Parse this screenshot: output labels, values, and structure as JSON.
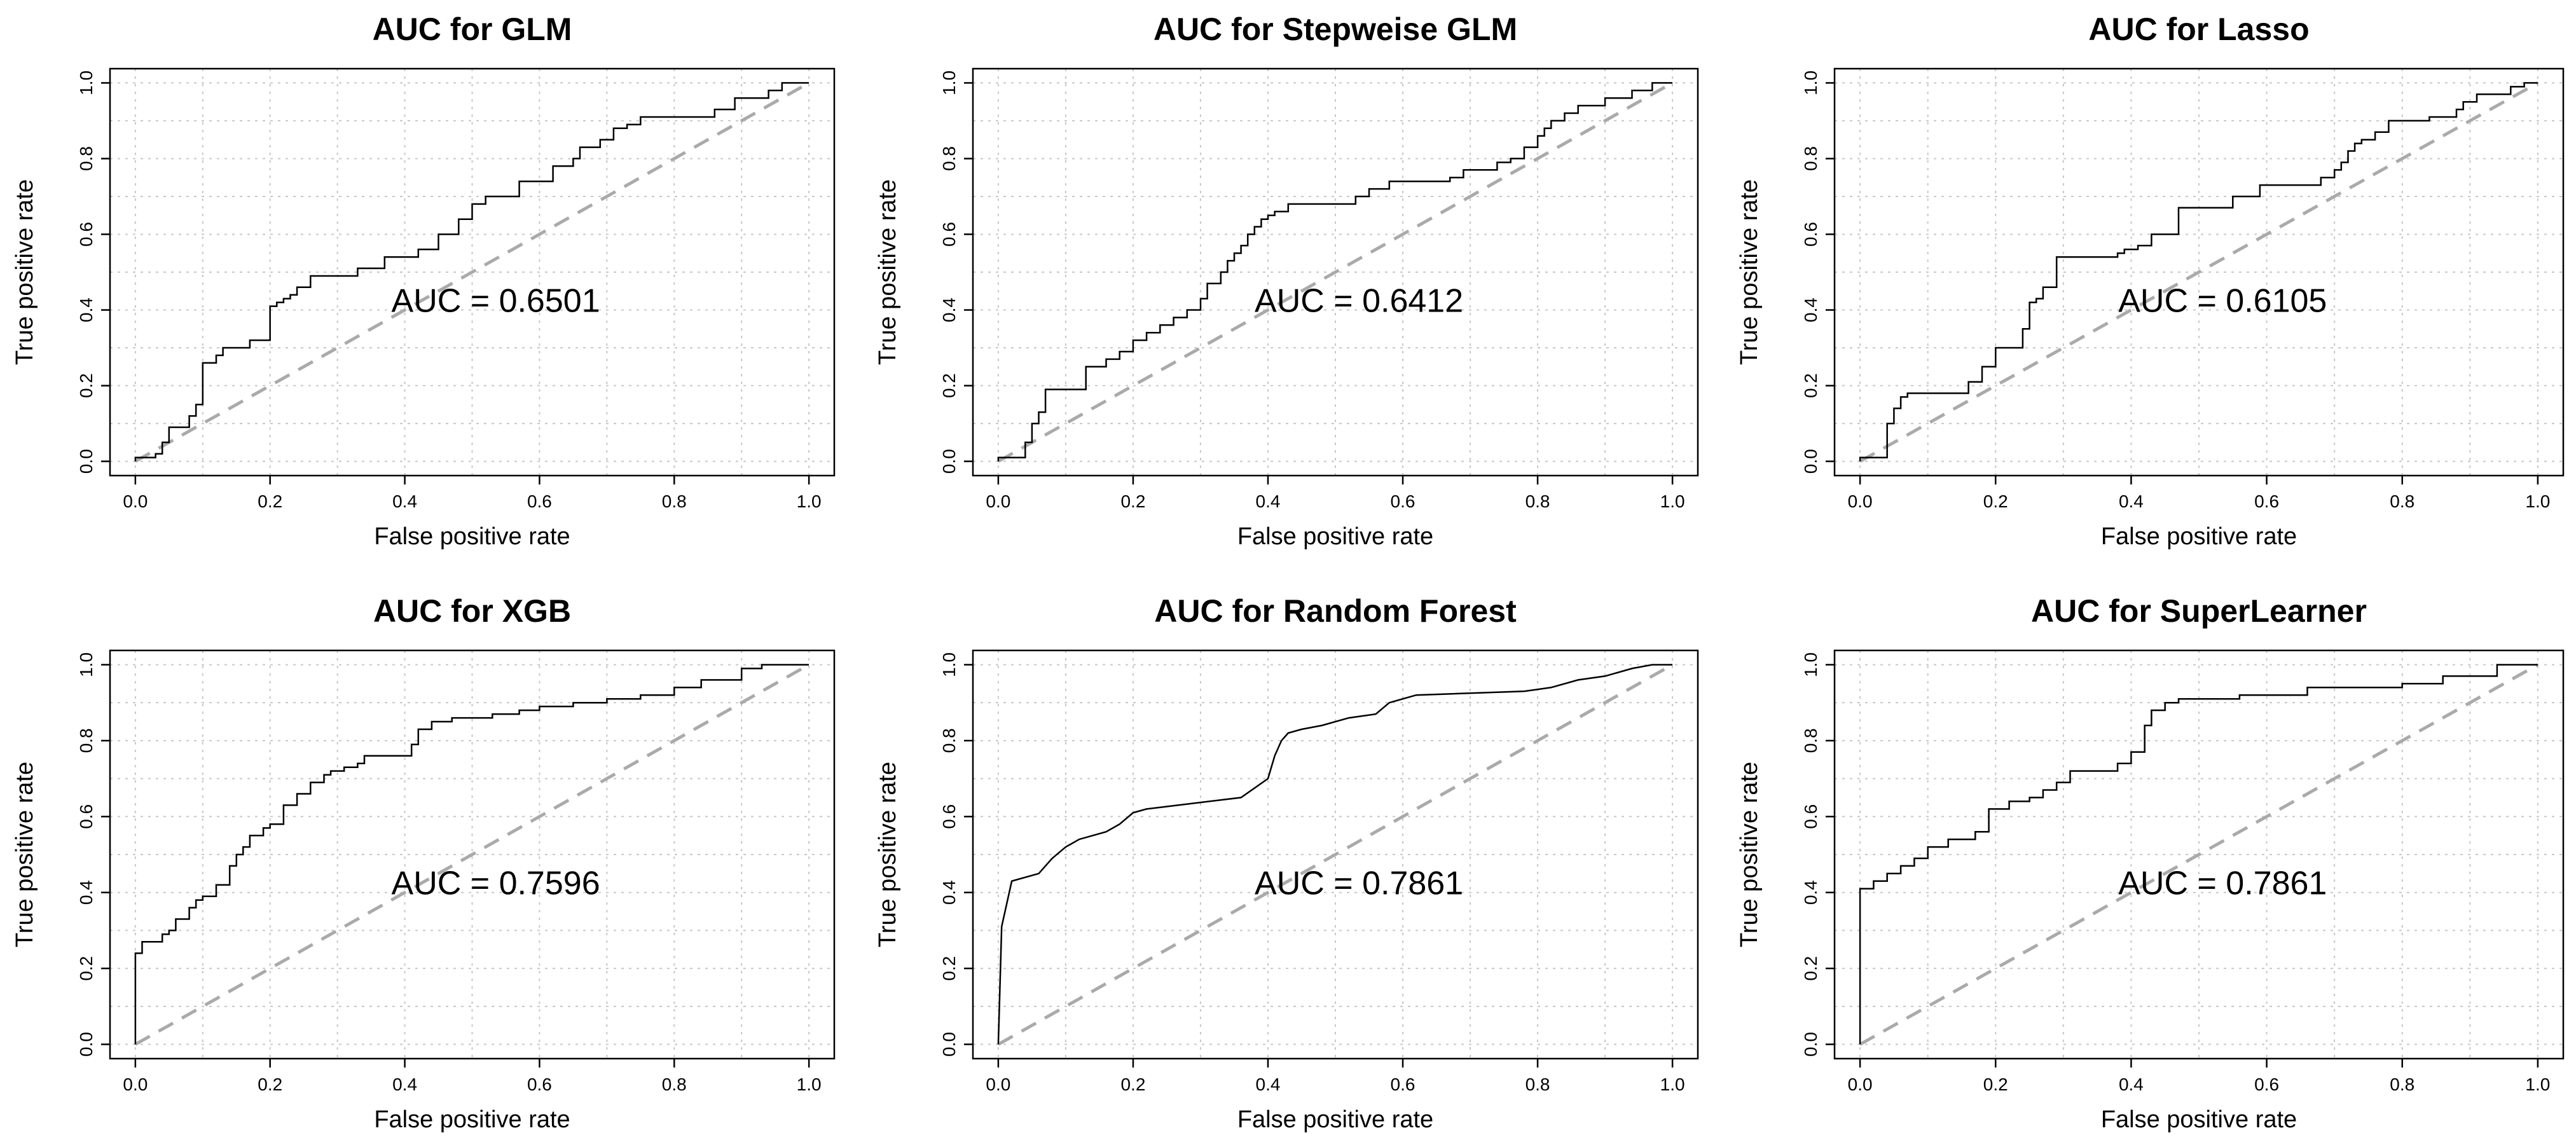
{
  "chart_data": [
    {
      "type": "line",
      "title": "AUC for GLM",
      "xlabel": "False positive rate",
      "ylabel": "True positive rate",
      "annotation": "AUC = 0.6501",
      "xlim": [
        0,
        1
      ],
      "ylim": [
        0,
        1
      ],
      "xticks": [
        "0.0",
        "0.2",
        "0.4",
        "0.6",
        "0.8",
        "1.0"
      ],
      "yticks": [
        "0.0",
        "0.2",
        "0.4",
        "0.6",
        "0.8",
        "1.0"
      ],
      "grid": true,
      "reference_line": "diagonal",
      "series": [
        {
          "name": "ROC",
          "x": [
            0,
            0,
            0.03,
            0.03,
            0.04,
            0.04,
            0.05,
            0.05,
            0.08,
            0.08,
            0.09,
            0.09,
            0.1,
            0.1,
            0.12,
            0.12,
            0.13,
            0.13,
            0.17,
            0.17,
            0.2,
            0.2,
            0.21,
            0.21,
            0.22,
            0.22,
            0.23,
            0.23,
            0.24,
            0.24,
            0.26,
            0.26,
            0.33,
            0.33,
            0.37,
            0.37,
            0.42,
            0.42,
            0.45,
            0.45,
            0.48,
            0.48,
            0.5,
            0.5,
            0.52,
            0.52,
            0.57,
            0.57,
            0.62,
            0.62,
            0.65,
            0.65,
            0.66,
            0.66,
            0.69,
            0.69,
            0.71,
            0.71,
            0.73,
            0.73,
            0.75,
            0.75,
            0.86,
            0.86,
            0.89,
            0.89,
            0.94,
            0.94,
            0.96,
            0.96,
            1.0
          ],
          "y": [
            0,
            0.01,
            0.01,
            0.02,
            0.02,
            0.05,
            0.05,
            0.09,
            0.09,
            0.12,
            0.12,
            0.15,
            0.15,
            0.26,
            0.26,
            0.28,
            0.28,
            0.3,
            0.3,
            0.32,
            0.32,
            0.41,
            0.41,
            0.42,
            0.42,
            0.43,
            0.43,
            0.44,
            0.44,
            0.46,
            0.46,
            0.49,
            0.49,
            0.51,
            0.51,
            0.54,
            0.54,
            0.56,
            0.56,
            0.6,
            0.6,
            0.64,
            0.64,
            0.68,
            0.68,
            0.7,
            0.7,
            0.74,
            0.74,
            0.78,
            0.78,
            0.8,
            0.8,
            0.83,
            0.83,
            0.85,
            0.85,
            0.88,
            0.88,
            0.89,
            0.89,
            0.91,
            0.91,
            0.93,
            0.93,
            0.96,
            0.96,
            0.98,
            0.98,
            1.0,
            1.0
          ]
        }
      ]
    },
    {
      "type": "line",
      "title": "AUC for Stepweise GLM",
      "xlabel": "False positive rate",
      "ylabel": "True positive rate",
      "annotation": "AUC = 0.6412",
      "xlim": [
        0,
        1
      ],
      "ylim": [
        0,
        1
      ],
      "xticks": [
        "0.0",
        "0.2",
        "0.4",
        "0.6",
        "0.8",
        "1.0"
      ],
      "yticks": [
        "0.0",
        "0.2",
        "0.4",
        "0.6",
        "0.8",
        "1.0"
      ],
      "grid": true,
      "reference_line": "diagonal",
      "series": [
        {
          "name": "ROC",
          "x": [
            0,
            0,
            0.04,
            0.04,
            0.05,
            0.05,
            0.06,
            0.06,
            0.07,
            0.07,
            0.13,
            0.13,
            0.16,
            0.16,
            0.18,
            0.18,
            0.2,
            0.2,
            0.22,
            0.22,
            0.24,
            0.24,
            0.26,
            0.26,
            0.28,
            0.28,
            0.3,
            0.3,
            0.31,
            0.31,
            0.33,
            0.33,
            0.34,
            0.34,
            0.35,
            0.35,
            0.36,
            0.36,
            0.37,
            0.37,
            0.38,
            0.38,
            0.39,
            0.39,
            0.4,
            0.4,
            0.41,
            0.41,
            0.43,
            0.43,
            0.53,
            0.53,
            0.55,
            0.55,
            0.58,
            0.58,
            0.67,
            0.67,
            0.69,
            0.69,
            0.74,
            0.74,
            0.76,
            0.76,
            0.78,
            0.78,
            0.8,
            0.8,
            0.81,
            0.81,
            0.82,
            0.82,
            0.84,
            0.84,
            0.86,
            0.86,
            0.9,
            0.9,
            0.94,
            0.94,
            0.97,
            0.97,
            1.0
          ],
          "y": [
            0,
            0.01,
            0.01,
            0.05,
            0.05,
            0.1,
            0.1,
            0.13,
            0.13,
            0.19,
            0.19,
            0.25,
            0.25,
            0.27,
            0.27,
            0.29,
            0.29,
            0.32,
            0.32,
            0.34,
            0.34,
            0.36,
            0.36,
            0.38,
            0.38,
            0.4,
            0.4,
            0.43,
            0.43,
            0.47,
            0.47,
            0.5,
            0.5,
            0.53,
            0.53,
            0.55,
            0.55,
            0.57,
            0.57,
            0.6,
            0.6,
            0.62,
            0.62,
            0.64,
            0.64,
            0.65,
            0.65,
            0.66,
            0.66,
            0.68,
            0.68,
            0.7,
            0.7,
            0.72,
            0.72,
            0.74,
            0.74,
            0.75,
            0.75,
            0.77,
            0.77,
            0.79,
            0.79,
            0.8,
            0.8,
            0.83,
            0.83,
            0.86,
            0.86,
            0.88,
            0.88,
            0.9,
            0.9,
            0.92,
            0.92,
            0.94,
            0.94,
            0.96,
            0.96,
            0.98,
            0.98,
            1.0,
            1.0
          ]
        }
      ]
    },
    {
      "type": "line",
      "title": "AUC for Lasso",
      "xlabel": "False positive rate",
      "ylabel": "True positive rate",
      "annotation": "AUC = 0.6105",
      "xlim": [
        0,
        1
      ],
      "ylim": [
        0,
        1
      ],
      "xticks": [
        "0.0",
        "0.2",
        "0.4",
        "0.6",
        "0.8",
        "1.0"
      ],
      "yticks": [
        "0.0",
        "0.2",
        "0.4",
        "0.6",
        "0.8",
        "1.0"
      ],
      "grid": true,
      "reference_line": "diagonal",
      "series": [
        {
          "name": "ROC",
          "x": [
            0,
            0,
            0.04,
            0.04,
            0.05,
            0.05,
            0.06,
            0.06,
            0.07,
            0.07,
            0.16,
            0.16,
            0.18,
            0.18,
            0.2,
            0.2,
            0.24,
            0.24,
            0.25,
            0.25,
            0.26,
            0.26,
            0.27,
            0.27,
            0.29,
            0.29,
            0.38,
            0.38,
            0.39,
            0.39,
            0.41,
            0.41,
            0.43,
            0.43,
            0.47,
            0.47,
            0.55,
            0.55,
            0.59,
            0.59,
            0.68,
            0.68,
            0.7,
            0.7,
            0.71,
            0.71,
            0.72,
            0.72,
            0.73,
            0.73,
            0.74,
            0.74,
            0.76,
            0.76,
            0.78,
            0.78,
            0.84,
            0.84,
            0.88,
            0.88,
            0.89,
            0.89,
            0.91,
            0.91,
            0.96,
            0.96,
            0.98,
            0.98,
            1.0
          ],
          "y": [
            0,
            0.01,
            0.01,
            0.1,
            0.1,
            0.14,
            0.14,
            0.17,
            0.17,
            0.18,
            0.18,
            0.21,
            0.21,
            0.25,
            0.25,
            0.3,
            0.3,
            0.35,
            0.35,
            0.42,
            0.42,
            0.43,
            0.43,
            0.46,
            0.46,
            0.54,
            0.54,
            0.55,
            0.55,
            0.56,
            0.56,
            0.57,
            0.57,
            0.6,
            0.6,
            0.67,
            0.67,
            0.7,
            0.7,
            0.73,
            0.73,
            0.75,
            0.75,
            0.77,
            0.77,
            0.79,
            0.79,
            0.82,
            0.82,
            0.84,
            0.84,
            0.85,
            0.85,
            0.87,
            0.87,
            0.9,
            0.9,
            0.91,
            0.91,
            0.93,
            0.93,
            0.95,
            0.95,
            0.97,
            0.97,
            0.99,
            0.99,
            1.0,
            1.0
          ]
        }
      ]
    },
    {
      "type": "line",
      "title": "AUC for XGB",
      "xlabel": "False positive rate",
      "ylabel": "True positive rate",
      "annotation": "AUC = 0.7596",
      "xlim": [
        0,
        1
      ],
      "ylim": [
        0,
        1
      ],
      "xticks": [
        "0.0",
        "0.2",
        "0.4",
        "0.6",
        "0.8",
        "1.0"
      ],
      "yticks": [
        "0.0",
        "0.2",
        "0.4",
        "0.6",
        "0.8",
        "1.0"
      ],
      "grid": true,
      "reference_line": "diagonal",
      "series": [
        {
          "name": "ROC",
          "x": [
            0,
            0,
            0.01,
            0.01,
            0.04,
            0.04,
            0.05,
            0.05,
            0.06,
            0.06,
            0.08,
            0.08,
            0.09,
            0.09,
            0.1,
            0.1,
            0.12,
            0.12,
            0.14,
            0.14,
            0.15,
            0.15,
            0.16,
            0.16,
            0.17,
            0.17,
            0.19,
            0.19,
            0.2,
            0.2,
            0.22,
            0.22,
            0.24,
            0.24,
            0.26,
            0.26,
            0.28,
            0.28,
            0.29,
            0.29,
            0.31,
            0.31,
            0.33,
            0.33,
            0.34,
            0.34,
            0.41,
            0.41,
            0.42,
            0.42,
            0.44,
            0.44,
            0.47,
            0.47,
            0.53,
            0.53,
            0.57,
            0.57,
            0.6,
            0.6,
            0.65,
            0.65,
            0.7,
            0.7,
            0.75,
            0.75,
            0.8,
            0.8,
            0.84,
            0.84,
            0.9,
            0.9,
            0.93,
            0.93,
            1.0
          ],
          "y": [
            0,
            0.24,
            0.24,
            0.27,
            0.27,
            0.29,
            0.29,
            0.3,
            0.3,
            0.33,
            0.33,
            0.36,
            0.36,
            0.38,
            0.38,
            0.39,
            0.39,
            0.42,
            0.42,
            0.47,
            0.47,
            0.5,
            0.5,
            0.52,
            0.52,
            0.55,
            0.55,
            0.57,
            0.57,
            0.58,
            0.58,
            0.63,
            0.63,
            0.66,
            0.66,
            0.69,
            0.69,
            0.71,
            0.71,
            0.72,
            0.72,
            0.73,
            0.73,
            0.74,
            0.74,
            0.76,
            0.76,
            0.79,
            0.79,
            0.83,
            0.83,
            0.85,
            0.85,
            0.86,
            0.86,
            0.87,
            0.87,
            0.88,
            0.88,
            0.89,
            0.89,
            0.9,
            0.9,
            0.91,
            0.91,
            0.92,
            0.92,
            0.94,
            0.94,
            0.96,
            0.96,
            0.99,
            0.99,
            1.0,
            1.0
          ]
        }
      ]
    },
    {
      "type": "line",
      "title": "AUC for Random Forest",
      "xlabel": "False positive rate",
      "ylabel": "True positive rate",
      "annotation": "AUC = 0.7861",
      "xlim": [
        0,
        1
      ],
      "ylim": [
        0,
        1
      ],
      "xticks": [
        "0.0",
        "0.2",
        "0.4",
        "0.6",
        "0.8",
        "1.0"
      ],
      "yticks": [
        "0.0",
        "0.2",
        "0.4",
        "0.6",
        "0.8",
        "1.0"
      ],
      "grid": true,
      "reference_line": "diagonal",
      "series": [
        {
          "name": "ROC",
          "x": [
            0,
            0.005,
            0.02,
            0.06,
            0.08,
            0.1,
            0.12,
            0.16,
            0.18,
            0.2,
            0.22,
            0.36,
            0.4,
            0.41,
            0.42,
            0.43,
            0.45,
            0.48,
            0.52,
            0.56,
            0.58,
            0.6,
            0.62,
            0.78,
            0.82,
            0.86,
            0.9,
            0.94,
            0.97,
            1.0
          ],
          "y": [
            0,
            0.31,
            0.43,
            0.45,
            0.49,
            0.52,
            0.54,
            0.56,
            0.58,
            0.61,
            0.62,
            0.65,
            0.7,
            0.76,
            0.8,
            0.82,
            0.83,
            0.84,
            0.86,
            0.87,
            0.9,
            0.91,
            0.92,
            0.93,
            0.94,
            0.96,
            0.97,
            0.99,
            1.0,
            1.0
          ]
        }
      ]
    },
    {
      "type": "line",
      "title": "AUC for SuperLearner",
      "xlabel": "False positive rate",
      "ylabel": "True positive rate",
      "annotation": "AUC = 0.7861",
      "xlim": [
        0,
        1
      ],
      "ylim": [
        0,
        1
      ],
      "xticks": [
        "0.0",
        "0.2",
        "0.4",
        "0.6",
        "0.8",
        "1.0"
      ],
      "yticks": [
        "0.0",
        "0.2",
        "0.4",
        "0.6",
        "0.8",
        "1.0"
      ],
      "grid": true,
      "reference_line": "diagonal",
      "series": [
        {
          "name": "ROC",
          "x": [
            0,
            0,
            0.02,
            0.02,
            0.04,
            0.04,
            0.06,
            0.06,
            0.08,
            0.08,
            0.1,
            0.1,
            0.13,
            0.13,
            0.17,
            0.17,
            0.19,
            0.19,
            0.22,
            0.22,
            0.25,
            0.25,
            0.27,
            0.27,
            0.29,
            0.29,
            0.31,
            0.31,
            0.38,
            0.38,
            0.4,
            0.4,
            0.42,
            0.42,
            0.43,
            0.43,
            0.45,
            0.45,
            0.47,
            0.47,
            0.56,
            0.56,
            0.66,
            0.66,
            0.8,
            0.8,
            0.86,
            0.86,
            0.94,
            0.94,
            1.0
          ],
          "y": [
            0,
            0.41,
            0.41,
            0.43,
            0.43,
            0.45,
            0.45,
            0.47,
            0.47,
            0.49,
            0.49,
            0.52,
            0.52,
            0.54,
            0.54,
            0.56,
            0.56,
            0.62,
            0.62,
            0.64,
            0.64,
            0.65,
            0.65,
            0.67,
            0.67,
            0.69,
            0.69,
            0.72,
            0.72,
            0.74,
            0.74,
            0.77,
            0.77,
            0.84,
            0.84,
            0.88,
            0.88,
            0.9,
            0.9,
            0.91,
            0.91,
            0.92,
            0.92,
            0.94,
            0.94,
            0.95,
            0.95,
            0.97,
            0.97,
            1.0,
            1.0
          ]
        }
      ]
    }
  ]
}
